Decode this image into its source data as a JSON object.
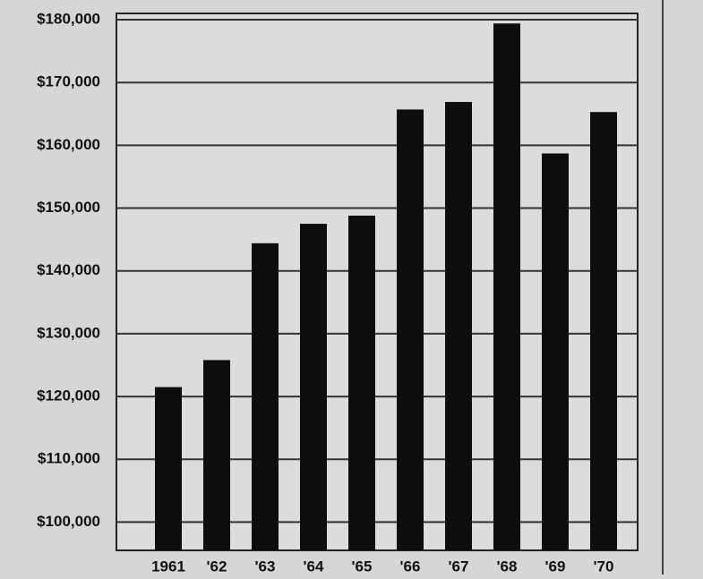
{
  "chart_data": {
    "type": "bar",
    "categories": [
      "1961",
      "'62",
      "'63",
      "'64",
      "'65",
      "'66",
      "'67",
      "'68",
      "'69",
      "'70"
    ],
    "values": [
      121500,
      125800,
      144400,
      147500,
      148800,
      165700,
      166900,
      179400,
      158700,
      165300
    ],
    "color": "#0d0d0d",
    "ylim": [
      95500,
      181000
    ],
    "yticks": [
      {
        "value": 100000,
        "label": "$100,000"
      },
      {
        "value": 110000,
        "label": "$110,000"
      },
      {
        "value": 120000,
        "label": "$120,000"
      },
      {
        "value": 130000,
        "label": "$130,000"
      },
      {
        "value": 140000,
        "label": "$140,000"
      },
      {
        "value": 150000,
        "label": "$150,000"
      },
      {
        "value": 160000,
        "label": "$160,000"
      },
      {
        "value": 170000,
        "label": "$170,000"
      },
      {
        "value": 180000,
        "label": "$180,000"
      }
    ],
    "grid": true
  }
}
